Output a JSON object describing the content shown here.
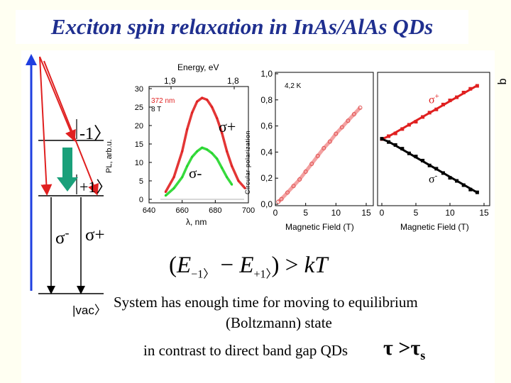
{
  "slide": {
    "title": "Exciton spin relaxation in InAs/AlAs QDs",
    "side_mark": "q"
  },
  "colors": {
    "title_color": "#1f2f8f",
    "background": "#fffff2",
    "sigma_plus": "#e02020",
    "sigma_minus": "#22d62a",
    "energy_arrow": "#1f3fe0",
    "relaxation_arrow": "#1aa07a",
    "dark_series": "#000000"
  },
  "energy_diagram": {
    "level_upper": "-1〉",
    "level_lower": "+1〉",
    "vacuum": "|vac〉",
    "sigma_minus_label": "σ",
    "sigma_minus_sup": "-",
    "sigma_plus_label": "σ+"
  },
  "spectrum_panel": {
    "top_axis_label": "Energy, eV",
    "top_ticks": [
      "1,9",
      "1,8"
    ],
    "inset_line1": "372 nm",
    "inset_line2": "8 T",
    "ylabel": "PL, arb.u.",
    "y_ticks": [
      "30",
      "25",
      "20",
      "15",
      "10",
      "5",
      "0"
    ],
    "x_ticks": [
      "640",
      "660",
      "680",
      "700"
    ],
    "xlabel": "λ, nm",
    "sigma_plus_label": "σ+",
    "sigma_minus_label": "σ-"
  },
  "chart_data": [
    {
      "type": "line",
      "title": "",
      "xlabel": "λ, nm",
      "ylabel": "PL, arb.u.",
      "xlim": [
        640,
        700
      ],
      "ylim": [
        0,
        30
      ],
      "series": [
        {
          "name": "σ+",
          "x": [
            650,
            655,
            660,
            663,
            666,
            669,
            672,
            675,
            678,
            681,
            684,
            687,
            690,
            694,
            698
          ],
          "values": [
            2,
            6,
            13,
            19,
            23.5,
            26.5,
            27.5,
            27,
            25,
            22,
            18,
            13,
            9,
            5,
            3
          ]
        },
        {
          "name": "σ-",
          "x": [
            650,
            655,
            660,
            663,
            666,
            669,
            672,
            675,
            678,
            681,
            684,
            687,
            690
          ],
          "values": [
            1,
            3,
            6,
            9,
            11.5,
            13,
            14,
            13.5,
            12.5,
            11,
            8.5,
            6,
            4
          ]
        }
      ]
    },
    {
      "type": "scatter",
      "title": "",
      "xlabel": "Magnetic Field (T)",
      "ylabel": "Circular polarization",
      "xlim": [
        0,
        15
      ],
      "ylim": [
        0,
        1.0
      ],
      "annotation": "4,2 K",
      "series": [
        {
          "name": "",
          "x": [
            0.5,
            1,
            2,
            3,
            4,
            5,
            6,
            7,
            8,
            9,
            10,
            11,
            12,
            13,
            14
          ],
          "values": [
            0.02,
            0.04,
            0.09,
            0.14,
            0.19,
            0.25,
            0.31,
            0.37,
            0.43,
            0.48,
            0.54,
            0.59,
            0.64,
            0.69,
            0.74
          ]
        }
      ]
    },
    {
      "type": "scatter",
      "title": "",
      "xlabel": "Magnetic Field (T)",
      "ylabel": "",
      "xlim": [
        0,
        15
      ],
      "ylim": [
        0,
        1.0
      ],
      "series": [
        {
          "name": "σ+",
          "x": [
            0,
            1,
            2,
            3,
            4,
            5,
            6,
            7,
            8,
            9,
            10,
            11,
            12,
            13,
            14
          ],
          "values": [
            0.5,
            0.52,
            0.55,
            0.58,
            0.61,
            0.64,
            0.67,
            0.7,
            0.73,
            0.76,
            0.79,
            0.82,
            0.85,
            0.88,
            0.91
          ]
        },
        {
          "name": "σ-",
          "x": [
            0,
            1,
            2,
            3,
            4,
            5,
            6,
            7,
            8,
            9,
            10,
            11,
            12,
            13,
            14
          ],
          "values": [
            0.5,
            0.48,
            0.45,
            0.42,
            0.39,
            0.36,
            0.33,
            0.3,
            0.27,
            0.24,
            0.21,
            0.18,
            0.15,
            0.12,
            0.09
          ]
        }
      ]
    }
  ],
  "polarization_panel": {
    "y_ticks": [
      "1,0",
      "0,8",
      "0,6",
      "0,4",
      "0,2",
      "0,0"
    ],
    "temp_label": "4,2 K",
    "x_ticks": [
      "0",
      "5",
      "10",
      "15"
    ],
    "xlabel": "Magnetic Field (T)",
    "ylabel": "Circular polarization"
  },
  "intensity_panel": {
    "x_ticks": [
      "0",
      "5",
      "10",
      "15"
    ],
    "xlabel": "Magnetic Field (T)",
    "sigma_plus": "σ",
    "sigma_plus_sup": "+",
    "sigma_minus": "σ",
    "sigma_minus_sup": "-"
  },
  "formula": {
    "open": "(",
    "e1": "E",
    "e1_sub": "−1〉",
    "minus": "−",
    "e2": "E",
    "e2_sub": "+1〉",
    "close": ")",
    "rel": ">",
    "rhs": "kT"
  },
  "text": {
    "line1": "System has enough time for moving to equilibrium",
    "line2": "(Boltzmann) state",
    "line3": "in contrast to direct band gap QDs",
    "tau": "τ",
    "gt": ">",
    "tau_s": "τ",
    "tau_s_sub": "s"
  }
}
